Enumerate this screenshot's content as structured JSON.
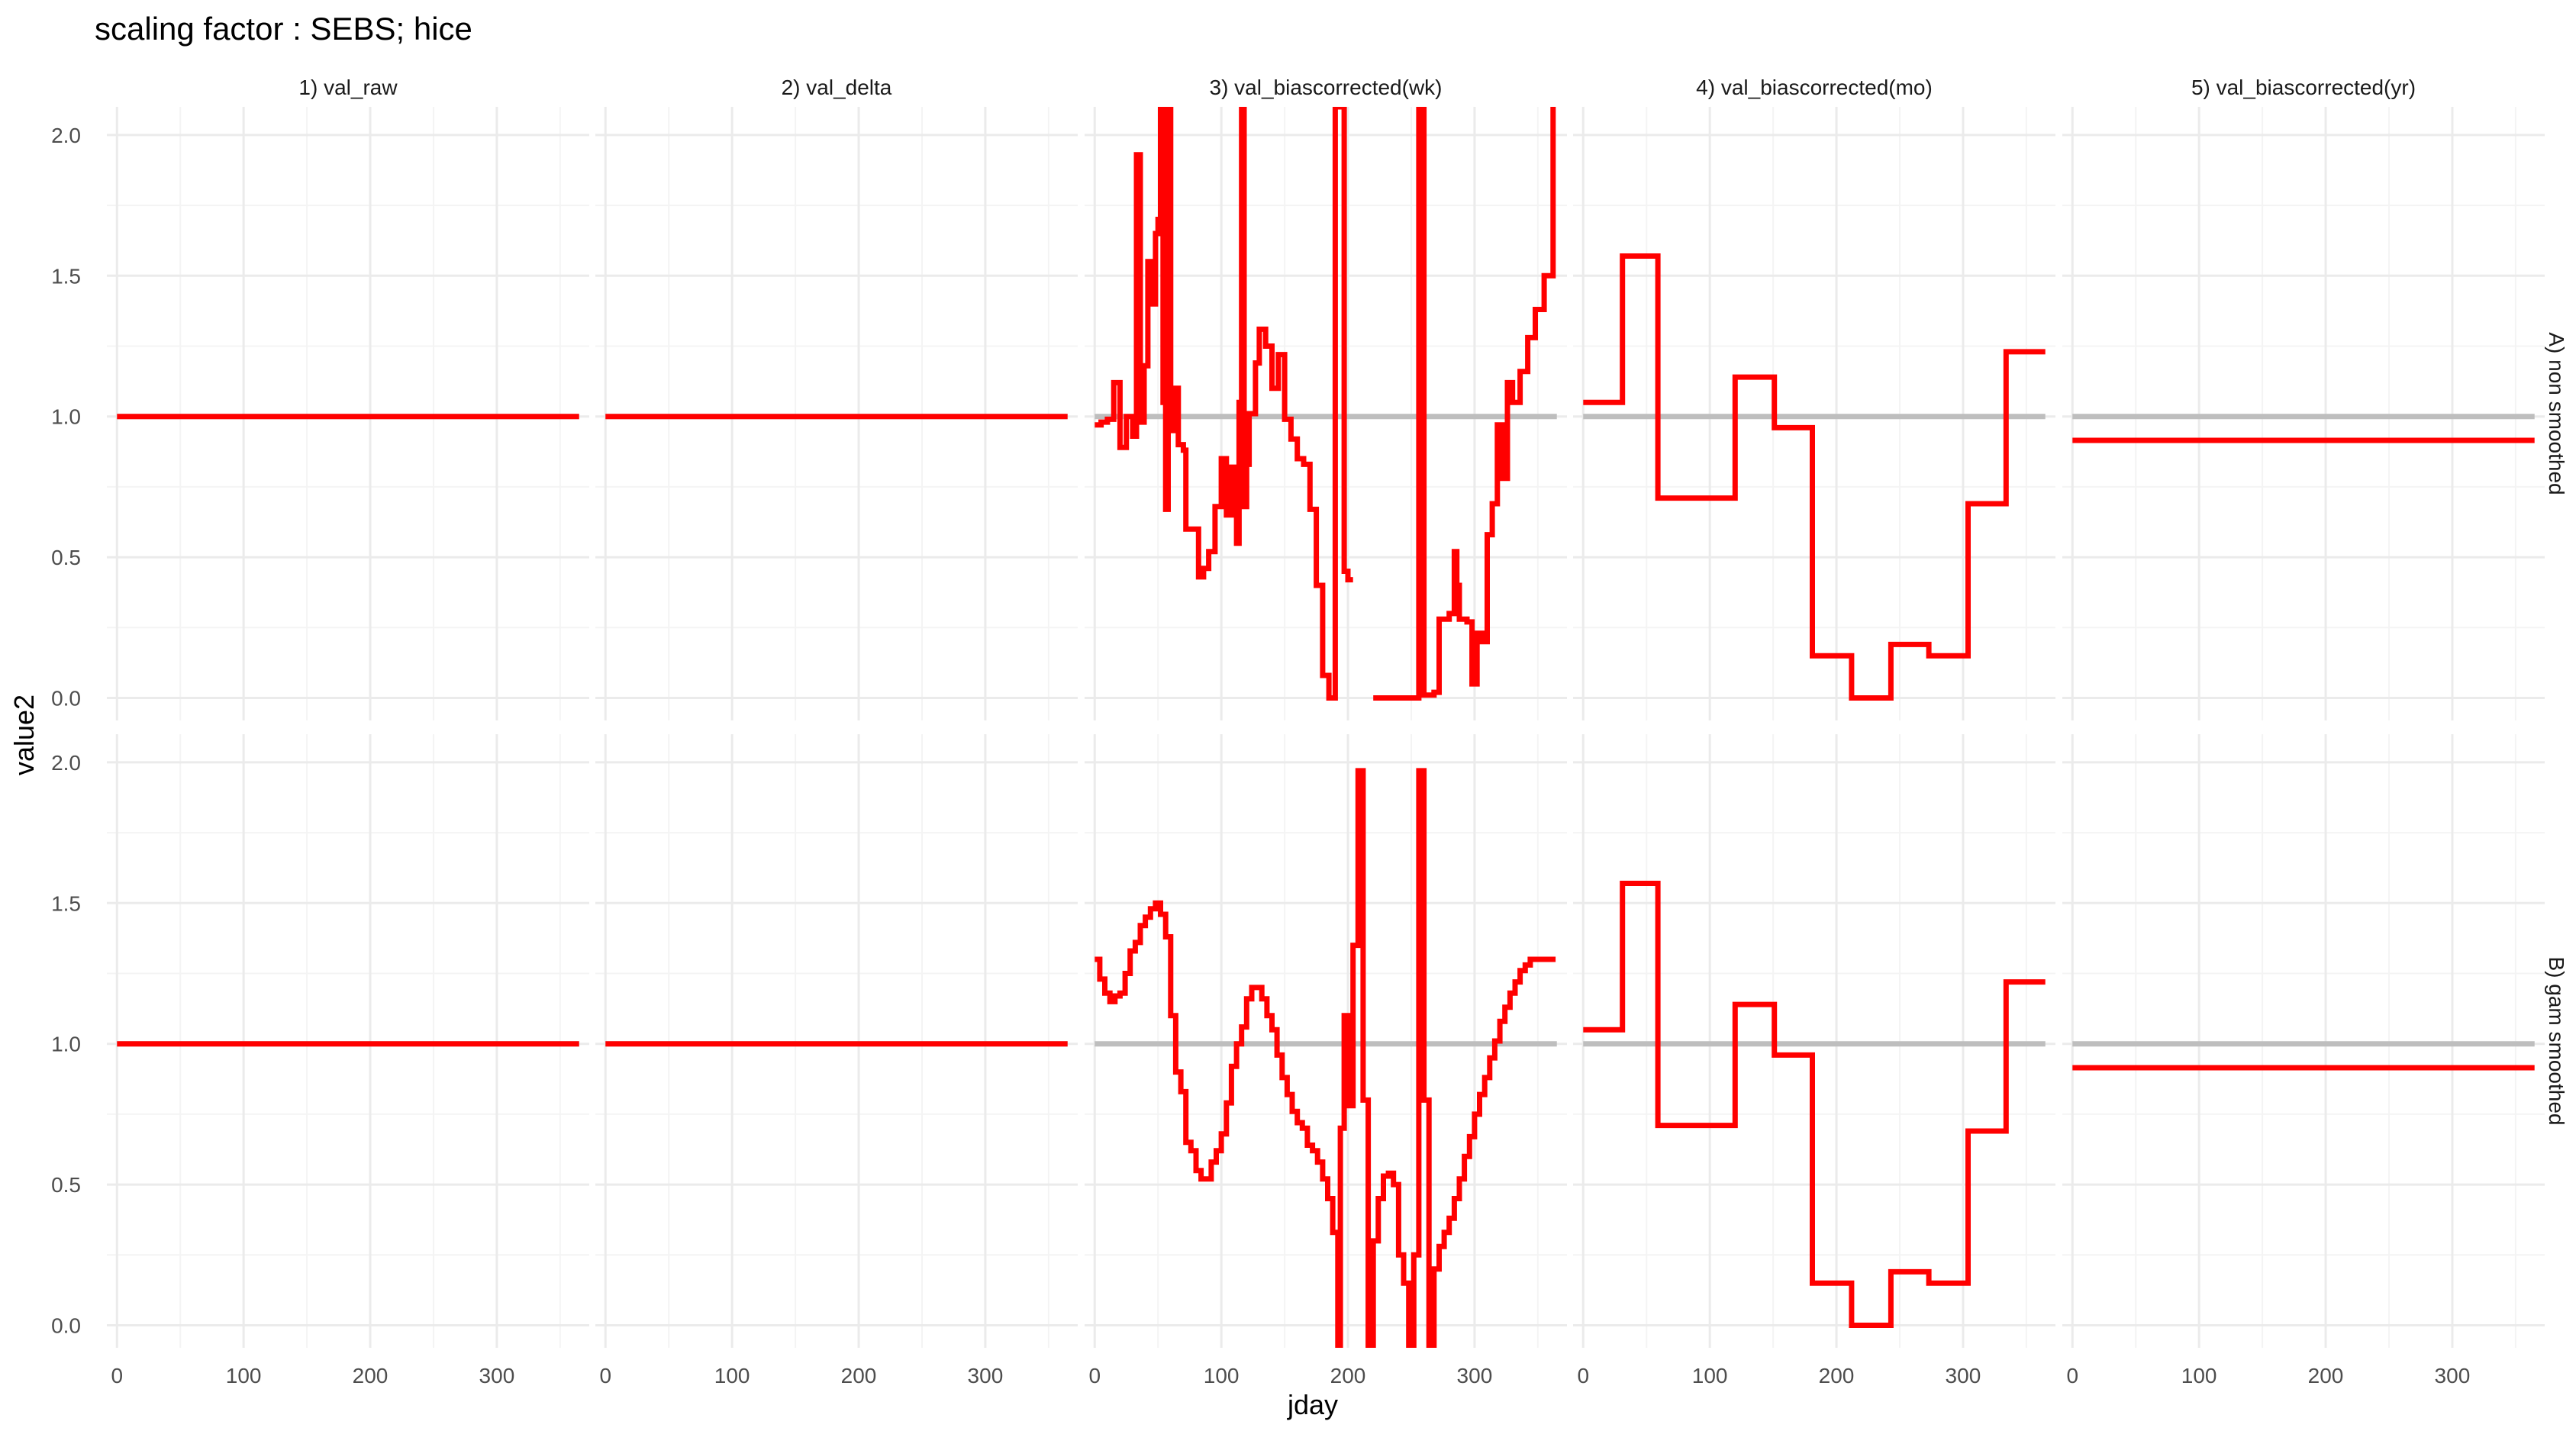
{
  "chart_data": {
    "type": "line",
    "title": "scaling factor : SEBS; hice",
    "xlabel": "jday",
    "ylabel": "value2",
    "xlim": [
      -8,
      373
    ],
    "ylim": [
      -0.08,
      2.1
    ],
    "x_ticks": [
      0,
      100,
      200,
      300
    ],
    "x_tick_labels": [
      "0",
      "100",
      "200",
      "300"
    ],
    "y_ticks": [
      0.0,
      0.5,
      1.0,
      1.5,
      2.0
    ],
    "y_tick_labels": [
      "0.0",
      "0.5",
      "1.0",
      "1.5",
      "2.0"
    ],
    "grid": true,
    "legend": "none",
    "colors": {
      "series": "#ff0000",
      "reference": "#bebebe",
      "grid_major": "#ebebeb",
      "grid_minor": "#f4f4f4",
      "text": "#4d4d4d"
    },
    "columns": [
      "1) val_raw",
      "2) val_delta",
      "3) val_biascorrected(wk)",
      "4) val_biascorrected(mo)",
      "5) val_biascorrected(yr)"
    ],
    "rows": [
      "A) non smoothed",
      "B) gam smoothed"
    ],
    "reference_series": {
      "x": [
        0,
        365
      ],
      "values": [
        1.0,
        1.0
      ]
    },
    "panels": [
      {
        "row": 0,
        "col": 0,
        "x": [
          0,
          365
        ],
        "values": [
          1.0,
          1.0
        ]
      },
      {
        "row": 0,
        "col": 1,
        "x": [
          0,
          365
        ],
        "values": [
          1.0,
          1.0
        ]
      },
      {
        "row": 0,
        "col": 2,
        "x": [
          0,
          5,
          10,
          15,
          20,
          25,
          30,
          33,
          36,
          39,
          42,
          45,
          48,
          50,
          52,
          54,
          56,
          58,
          60,
          62,
          64,
          66,
          68,
          70,
          72,
          75,
          78,
          82,
          86,
          90,
          95,
          100,
          104,
          108,
          112,
          114,
          116,
          118,
          120,
          122,
          124,
          127,
          130,
          135,
          140,
          145,
          150,
          155,
          160,
          165,
          170,
          175,
          180,
          185,
          190,
          194,
          197,
          200,
          204,
          206,
          220,
          228,
          236,
          244,
          252,
          256,
          258,
          260,
          264,
          268,
          272,
          276,
          280,
          284,
          286,
          288,
          290,
          292,
          294,
          298,
          302,
          306,
          310,
          314,
          318,
          322,
          326,
          330,
          336,
          342,
          348,
          355,
          362
        ],
        "values": [
          0.97,
          0.98,
          0.99,
          1.12,
          0.89,
          1.0,
          0.93,
          1.93,
          0.98,
          1.18,
          1.55,
          1.4,
          1.65,
          1.7,
          2.1,
          1.05,
          0.67,
          2.1,
          0.95,
          1.1,
          1.1,
          0.9,
          0.9,
          0.88,
          0.6,
          0.6,
          0.6,
          0.43,
          0.46,
          0.52,
          0.68,
          0.85,
          0.65,
          0.82,
          0.55,
          1.05,
          2.1,
          0.68,
          0.83,
          1.01,
          1.01,
          1.19,
          1.31,
          1.25,
          1.1,
          1.22,
          0.99,
          0.92,
          0.85,
          0.83,
          0.67,
          0.4,
          0.08,
          0.0,
          2.1,
          2.1,
          0.45,
          0.42,
          null,
          null,
          0.0,
          0.0,
          0.0,
          0.0,
          0.0,
          2.1,
          2.1,
          0.01,
          0.01,
          0.02,
          0.28,
          0.28,
          0.3,
          0.52,
          0.4,
          0.28,
          0.28,
          0.28,
          0.27,
          0.05,
          0.23,
          0.2,
          0.58,
          0.69,
          0.97,
          0.78,
          1.12,
          1.05,
          1.16,
          1.28,
          1.38,
          1.5,
          2.1
        ]
      },
      {
        "row": 0,
        "col": 3,
        "x": [
          0,
          31,
          59,
          90,
          120,
          151,
          181,
          212,
          243,
          273,
          304,
          334,
          365
        ],
        "values": [
          1.05,
          1.57,
          0.71,
          0.71,
          1.14,
          0.96,
          0.15,
          0.0,
          0.19,
          0.15,
          0.69,
          1.23,
          1.23
        ]
      },
      {
        "row": 0,
        "col": 4,
        "x": [
          0,
          365
        ],
        "values": [
          0.915,
          0.915
        ]
      },
      {
        "row": 1,
        "col": 0,
        "x": [
          0,
          365
        ],
        "values": [
          1.0,
          1.0
        ]
      },
      {
        "row": 1,
        "col": 1,
        "x": [
          0,
          365
        ],
        "values": [
          1.0,
          1.0
        ]
      },
      {
        "row": 1,
        "col": 2,
        "x": [
          0,
          4,
          8,
          12,
          16,
          20,
          24,
          28,
          32,
          36,
          40,
          44,
          48,
          52,
          56,
          60,
          64,
          68,
          72,
          76,
          80,
          84,
          88,
          92,
          96,
          100,
          104,
          108,
          112,
          116,
          120,
          124,
          128,
          132,
          136,
          140,
          144,
          148,
          152,
          156,
          160,
          164,
          168,
          172,
          176,
          180,
          184,
          188,
          192,
          194,
          197,
          200,
          204,
          208,
          212,
          216,
          220,
          224,
          228,
          232,
          236,
          240,
          244,
          248,
          252,
          256,
          260,
          264,
          268,
          272,
          276,
          280,
          284,
          288,
          292,
          296,
          300,
          304,
          308,
          312,
          316,
          320,
          324,
          328,
          332,
          336,
          340,
          344,
          348,
          352,
          356,
          360,
          364
        ],
        "values": [
          1.3,
          1.23,
          1.18,
          1.15,
          1.17,
          1.18,
          1.25,
          1.33,
          1.36,
          1.42,
          1.45,
          1.48,
          1.5,
          1.46,
          1.38,
          1.1,
          0.9,
          0.83,
          0.65,
          0.62,
          0.55,
          0.52,
          0.52,
          0.58,
          0.62,
          0.68,
          0.79,
          0.92,
          1.0,
          1.06,
          1.16,
          1.2,
          1.2,
          1.16,
          1.1,
          1.05,
          0.96,
          0.88,
          0.82,
          0.76,
          0.72,
          0.7,
          0.64,
          0.62,
          0.58,
          0.52,
          0.45,
          0.33,
          -0.1,
          0.7,
          1.1,
          0.78,
          1.35,
          1.97,
          0.8,
          -0.1,
          0.3,
          0.45,
          0.53,
          0.54,
          0.5,
          0.25,
          0.15,
          -0.1,
          0.25,
          1.97,
          0.8,
          -0.1,
          0.2,
          0.28,
          0.33,
          0.38,
          0.45,
          0.52,
          0.6,
          0.67,
          0.75,
          0.82,
          0.88,
          0.95,
          1.01,
          1.08,
          1.13,
          1.18,
          1.22,
          1.26,
          1.28,
          1.3,
          1.3,
          1.3,
          1.3,
          1.3,
          1.3
        ]
      },
      {
        "row": 1,
        "col": 3,
        "x": [
          0,
          31,
          59,
          90,
          120,
          151,
          181,
          212,
          243,
          273,
          304,
          334,
          365
        ],
        "values": [
          1.05,
          1.57,
          0.71,
          0.71,
          1.14,
          0.96,
          0.15,
          0.0,
          0.19,
          0.15,
          0.69,
          1.22,
          1.22
        ]
      },
      {
        "row": 1,
        "col": 4,
        "x": [
          0,
          365
        ],
        "values": [
          0.915,
          0.915
        ]
      }
    ]
  }
}
